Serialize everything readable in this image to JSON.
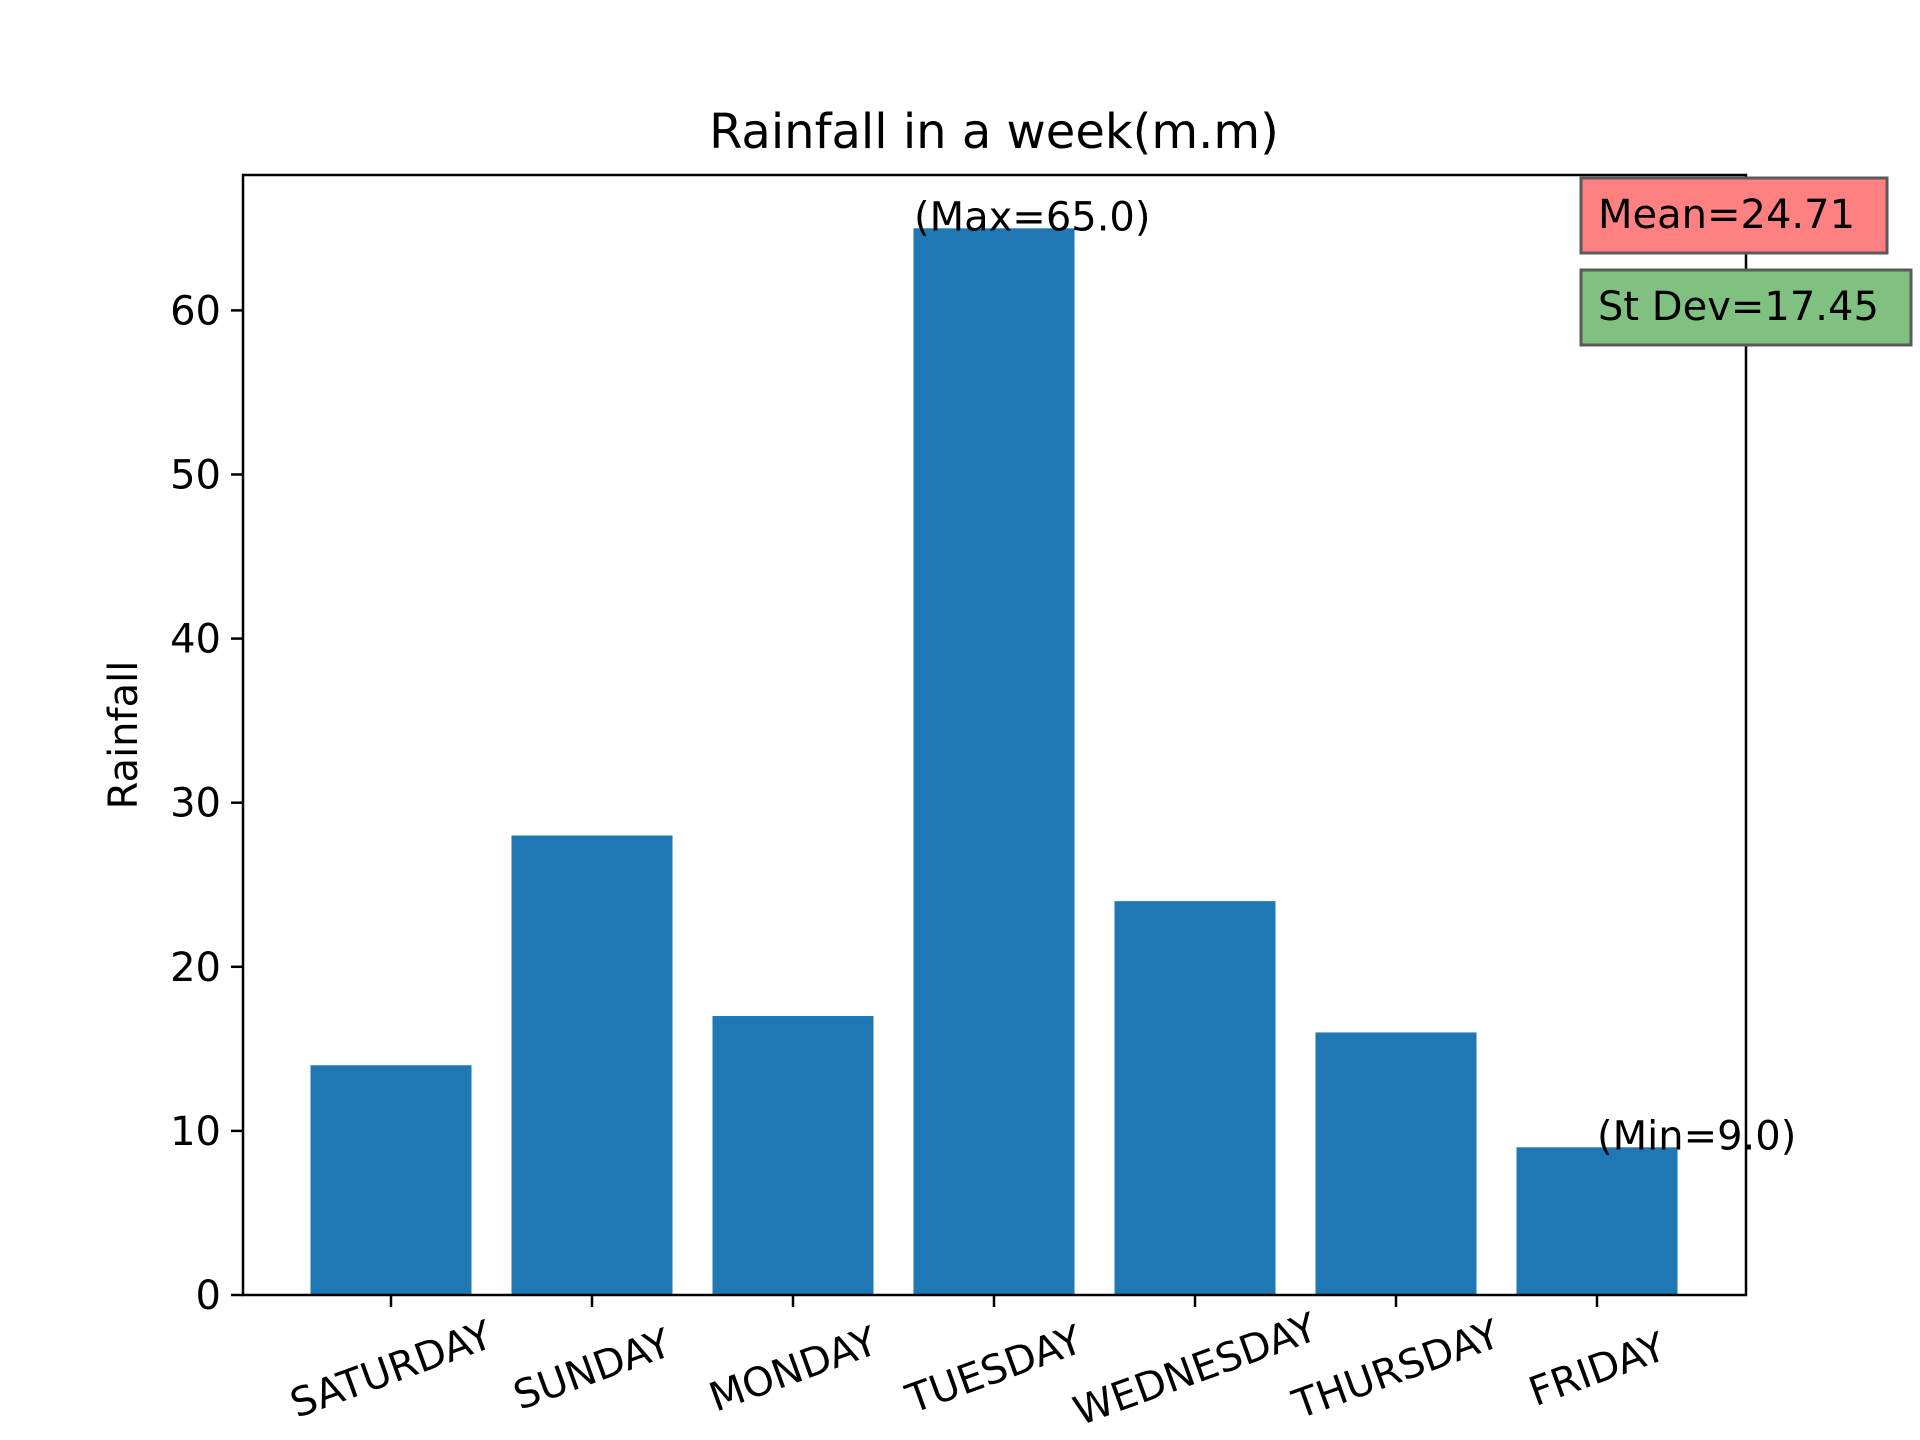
{
  "chart_data": {
    "type": "bar",
    "title": "Rainfall in a week(m.m)",
    "xlabel": "",
    "ylabel": "Rainfall",
    "categories": [
      "SATURDAY",
      "SUNDAY",
      "MONDAY",
      "TUESDAY",
      "WEDNESDAY",
      "THURSDAY",
      "FRIDAY"
    ],
    "values": [
      14,
      28,
      17,
      65,
      24,
      16,
      9
    ],
    "ylim": [
      0,
      68.25
    ],
    "yticks": [
      0,
      10,
      20,
      30,
      40,
      50,
      60
    ],
    "ytick_labels": [
      "0",
      "10",
      "20",
      "30",
      "40",
      "50",
      "60"
    ],
    "grid": false,
    "colors": {
      "bar": "#1f77b4",
      "mean_box": "#ff8080",
      "stdev_box": "#80c080"
    },
    "annotations": {
      "max_label": "(Max=65.0)",
      "min_label": "(Min=9.0)",
      "mean_label": "Mean=24.71",
      "stdev_label": "St Dev=17.45"
    }
  }
}
